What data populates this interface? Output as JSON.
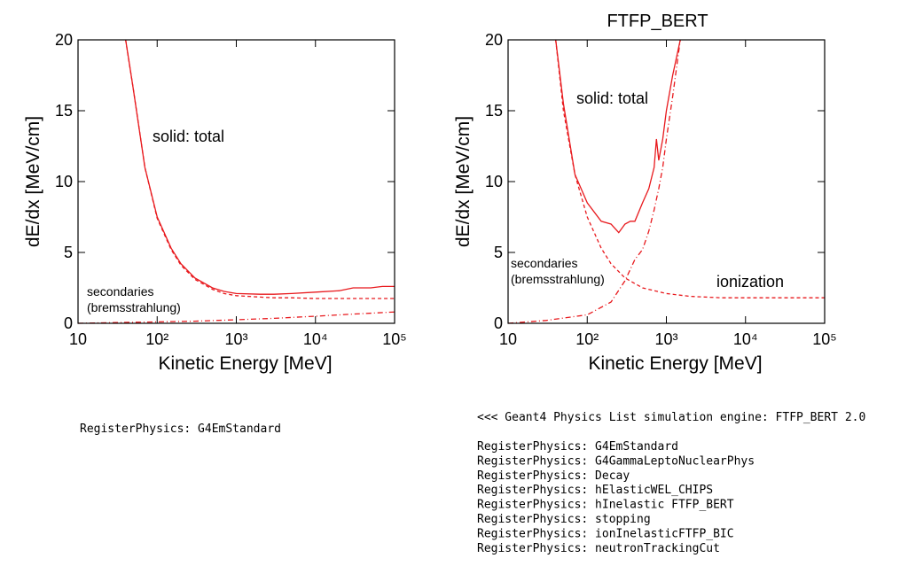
{
  "chart_data": [
    {
      "type": "line",
      "xlabel": "Kinetic Energy [MeV]",
      "ylabel": "dE/dx [MeV/cm]",
      "xlog": true,
      "xlim": [
        10,
        100000
      ],
      "ylim": [
        0,
        20
      ],
      "xticks": [
        10,
        {
          "value": 100,
          "label": "10²"
        },
        {
          "value": 1000,
          "label": "10³"
        },
        {
          "value": 10000,
          "label": "10⁴"
        },
        {
          "value": 100000,
          "label": "10⁵"
        }
      ],
      "yticks": [
        0,
        5,
        10,
        15,
        20
      ],
      "annotations": [
        "solid: total",
        "secondaries",
        "(bremsstrahlung)"
      ],
      "series": [
        {
          "color": "#e8191d",
          "line_style": "solid",
          "x": [
            40,
            50,
            70,
            100,
            150,
            200,
            300,
            500,
            700,
            1000,
            2000,
            3000,
            5000,
            10000,
            20000,
            30000,
            50000,
            70000,
            100000
          ],
          "values": [
            20,
            16.5,
            11,
            7.5,
            5.3,
            4.2,
            3.2,
            2.5,
            2.25,
            2.1,
            2.05,
            2.05,
            2.1,
            2.2,
            2.3,
            2.5,
            2.5,
            2.6,
            2.6
          ]
        },
        {
          "color": "#e8191d",
          "line_style": "dashed",
          "x": [
            40,
            50,
            70,
            100,
            150,
            200,
            300,
            500,
            700,
            1000,
            2000,
            3000,
            5000,
            10000,
            20000,
            30000,
            50000,
            70000,
            100000
          ],
          "values": [
            20,
            16.5,
            11,
            7.4,
            5.2,
            4.1,
            3.1,
            2.4,
            2.1,
            1.95,
            1.85,
            1.8,
            1.8,
            1.75,
            1.75,
            1.75,
            1.75,
            1.75,
            1.75
          ]
        },
        {
          "color": "#e8191d",
          "line_style": "dashdot",
          "x": [
            10,
            30,
            100,
            300,
            1000,
            3000,
            10000,
            30000,
            100000
          ],
          "values": [
            0,
            0.05,
            0.1,
            0.15,
            0.25,
            0.35,
            0.5,
            0.65,
            0.8
          ]
        }
      ]
    },
    {
      "type": "line",
      "title": "FTFP_BERT",
      "xlabel": "Kinetic Energy [MeV]",
      "ylabel": "dE/dx [MeV/cm]",
      "xlog": true,
      "xlim": [
        10,
        100000
      ],
      "ylim": [
        0,
        20
      ],
      "xticks": [
        10,
        {
          "value": 100,
          "label": "10²"
        },
        {
          "value": 1000,
          "label": "10³"
        },
        {
          "value": 10000,
          "label": "10⁴"
        },
        {
          "value": 100000,
          "label": "10⁵"
        }
      ],
      "yticks": [
        0,
        5,
        10,
        15,
        20
      ],
      "annotations": [
        "solid: total",
        "secondaries",
        "(bremsstrahlung)",
        "ionization"
      ],
      "series": [
        {
          "color": "#e8191d",
          "line_style": "solid",
          "x": [
            40,
            50,
            70,
            100,
            150,
            200,
            250,
            300,
            350,
            400,
            500,
            600,
            700,
            750,
            800,
            900,
            1000,
            1200,
            1500
          ],
          "values": [
            20,
            15.5,
            10.5,
            8.5,
            7.2,
            7,
            6.4,
            7,
            7.2,
            7.2,
            8.5,
            9.5,
            11,
            13,
            11.5,
            13,
            15,
            17.5,
            20
          ]
        },
        {
          "color": "#e8191d",
          "line_style": "dashed",
          "x": [
            40,
            50,
            70,
            100,
            150,
            200,
            300,
            500,
            1000,
            2000,
            5000,
            10000,
            100000
          ],
          "values": [
            20,
            15,
            10.5,
            7.5,
            5.3,
            4.2,
            3.2,
            2.5,
            2.1,
            1.9,
            1.8,
            1.8,
            1.8
          ]
        },
        {
          "color": "#e8191d",
          "line_style": "dashdot",
          "x": [
            10,
            30,
            100,
            200,
            300,
            400,
            500,
            600,
            700,
            800,
            900,
            1000,
            1200,
            1500
          ],
          "values": [
            0,
            0.2,
            0.6,
            1.5,
            3,
            4.5,
            5.2,
            6.5,
            8,
            9.5,
            11,
            13,
            16,
            20
          ]
        }
      ]
    }
  ],
  "console": {
    "left": [
      "RegisterPhysics: G4EmStandard"
    ],
    "right_header": "<<< Geant4 Physics List simulation engine: FTFP_BERT 2.0",
    "right": [
      "RegisterPhysics: G4EmStandard",
      "RegisterPhysics: G4GammaLeptoNuclearPhys",
      "RegisterPhysics: Decay",
      "RegisterPhysics: hElasticWEL_CHIPS",
      "RegisterPhysics: hInelastic FTFP_BERT",
      "RegisterPhysics: stopping",
      "RegisterPhysics: ionInelasticFTFP_BIC",
      "RegisterPhysics: neutronTrackingCut"
    ]
  }
}
